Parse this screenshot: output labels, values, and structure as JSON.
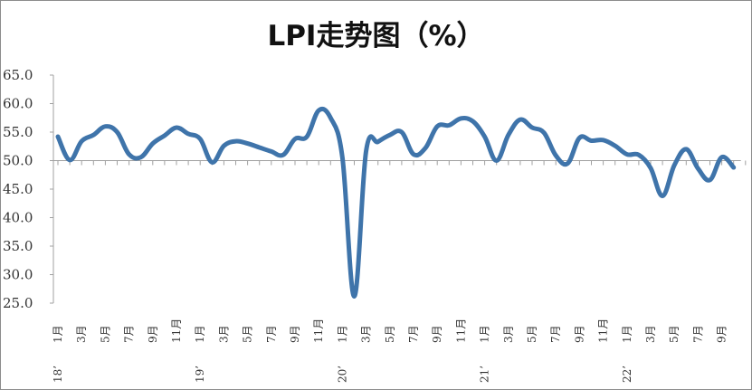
{
  "chart_data": {
    "type": "line",
    "title": "LPI走势图（%）",
    "xlabel": "",
    "ylabel": "",
    "ylim": [
      25.0,
      65.0
    ],
    "yticks": [
      "65.0",
      "60.0",
      "55.0",
      "50.0",
      "45.0",
      "40.0",
      "35.0",
      "30.0",
      "25.0"
    ],
    "x_axis_crosses_at": 50.0,
    "grid": false,
    "legend": null,
    "line_color": "#3f74aa",
    "x": [
      "18'1",
      "18'2",
      "18'3",
      "18'4",
      "18'5",
      "18'6",
      "18'7",
      "18'8",
      "18'9",
      "18'10",
      "18'11",
      "18'12",
      "19'1",
      "19'2",
      "19'3",
      "19'4",
      "19'5",
      "19'6",
      "19'7",
      "19'8",
      "19'9",
      "19'10",
      "19'11",
      "19'12",
      "20'1",
      "20'2",
      "20'3",
      "20'4",
      "20'5",
      "20'6",
      "20'7",
      "20'8",
      "20'9",
      "20'10",
      "20'11",
      "20'12",
      "21'1",
      "21'2",
      "21'3",
      "21'4",
      "21'5",
      "21'6",
      "21'7",
      "21'8",
      "21'9",
      "21'10",
      "21'11",
      "21'12",
      "22'1",
      "22'2",
      "22'3",
      "22'4",
      "22'5",
      "22'6",
      "22'7",
      "22'8",
      "22'9",
      "22'10"
    ],
    "values": [
      54.2,
      50.1,
      53.4,
      54.5,
      56.0,
      55.0,
      51.1,
      50.6,
      53.0,
      54.4,
      55.8,
      54.7,
      53.8,
      49.7,
      52.6,
      53.4,
      53.0,
      52.3,
      51.6,
      51.0,
      53.8,
      54.2,
      58.8,
      57.5,
      50.5,
      26.2,
      51.7,
      53.3,
      54.5,
      55.0,
      51.1,
      52.2,
      56.0,
      56.2,
      57.4,
      56.9,
      54.2,
      50.0,
      54.5,
      57.2,
      55.8,
      54.9,
      50.9,
      49.5,
      54.0,
      53.5,
      53.6,
      52.6,
      51.1,
      51.0,
      48.7,
      43.8,
      49.2,
      52.0,
      48.6,
      46.6,
      50.6,
      48.8
    ],
    "tick_labels": [
      {
        "month": "1月",
        "year": "18’",
        "index": 0
      },
      {
        "month": "3月",
        "index": 2
      },
      {
        "month": "5月",
        "index": 4
      },
      {
        "month": "7月",
        "index": 6
      },
      {
        "month": "9月",
        "index": 8
      },
      {
        "month": "11月",
        "index": 10
      },
      {
        "month": "1月",
        "year": "19’",
        "index": 12
      },
      {
        "month": "3月",
        "index": 14
      },
      {
        "month": "5月",
        "index": 16
      },
      {
        "month": "7月",
        "index": 18
      },
      {
        "month": "9月",
        "index": 20
      },
      {
        "month": "11月",
        "index": 22
      },
      {
        "month": "1月",
        "year": "20’",
        "index": 24
      },
      {
        "month": "3月",
        "index": 26
      },
      {
        "month": "5月",
        "index": 28
      },
      {
        "month": "7月",
        "index": 30
      },
      {
        "month": "9月",
        "index": 32
      },
      {
        "month": "11月",
        "index": 34
      },
      {
        "month": "1月",
        "year": "21’",
        "index": 36
      },
      {
        "month": "3月",
        "index": 38
      },
      {
        "month": "5月",
        "index": 40
      },
      {
        "month": "7月",
        "index": 42
      },
      {
        "month": "9月",
        "index": 44
      },
      {
        "month": "11月",
        "index": 46
      },
      {
        "month": "1月",
        "year": "22’",
        "index": 48
      },
      {
        "month": "3月",
        "index": 50
      },
      {
        "month": "5月",
        "index": 52
      },
      {
        "month": "7月",
        "index": 54
      },
      {
        "month": "9月",
        "index": 56
      }
    ]
  }
}
